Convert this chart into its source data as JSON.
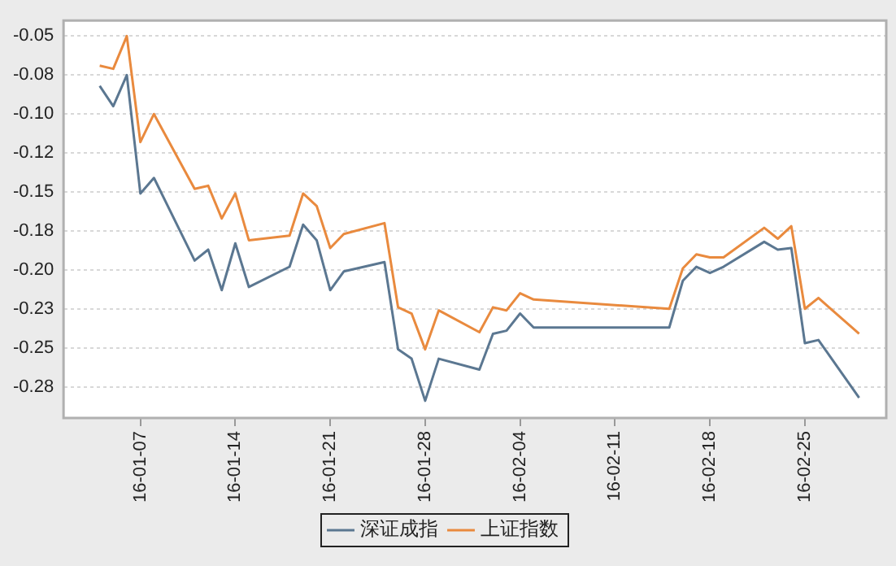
{
  "chart_data": {
    "type": "line",
    "x": [
      "--01-04",
      "--01-05",
      "--01-06",
      "--01-07",
      "--01-08",
      "--01-11",
      "--01-12",
      "--01-13",
      "--01-14",
      "--01-15",
      "--01-18",
      "--01-19",
      "--01-20",
      "--01-21",
      "--01-22",
      "--01-25",
      "--01-26",
      "--01-27",
      "--01-28",
      "--01-29",
      "--02-01",
      "--02-02",
      "--02-03",
      "--02-04",
      "--02-05",
      "--02-15",
      "--02-16",
      "--02-17",
      "--02-18",
      "--02-19",
      "--02-22",
      "--02-23",
      "--02-24",
      "--02-25",
      "--02-26",
      "--02-29"
    ],
    "series": [
      {
        "name": "深证成指",
        "color": "#5b7791",
        "values": [
          -0.082,
          -0.095,
          -0.075,
          -0.151,
          -0.141,
          -0.194,
          -0.187,
          -0.213,
          -0.183,
          -0.211,
          -0.198,
          -0.171,
          -0.181,
          -0.213,
          -0.201,
          -0.195,
          -0.251,
          -0.257,
          -0.284,
          -0.257,
          -0.264,
          -0.241,
          -0.239,
          -0.228,
          -0.237,
          -0.237,
          -0.207,
          -0.198,
          -0.202,
          -0.198,
          -0.182,
          -0.187,
          -0.186,
          -0.247,
          -0.245,
          -0.282
        ]
      },
      {
        "name": "上证指数",
        "color": "#e98a3e",
        "values": [
          -0.069,
          -0.071,
          -0.05,
          -0.118,
          -0.1,
          -0.148,
          -0.146,
          -0.167,
          -0.151,
          -0.181,
          -0.178,
          -0.151,
          -0.159,
          -0.186,
          -0.177,
          -0.17,
          -0.224,
          -0.228,
          -0.251,
          -0.226,
          -0.24,
          -0.224,
          -0.226,
          -0.215,
          -0.219,
          -0.225,
          -0.199,
          -0.19,
          -0.192,
          -0.192,
          -0.173,
          -0.18,
          -0.172,
          -0.225,
          -0.218,
          -0.241
        ]
      }
    ],
    "xlim": [
      "--01-01T08:00",
      "--03-02T00:00"
    ],
    "xticks": [
      {
        "value": "--01-07",
        "label": "16-01-07"
      },
      {
        "value": "--01-14",
        "label": "16-01-14"
      },
      {
        "value": "--01-21",
        "label": "16-01-21"
      },
      {
        "value": "--01-28",
        "label": "16-01-28"
      },
      {
        "value": "--02-04",
        "label": "16-02-04"
      },
      {
        "value": "--02-11",
        "label": "16-02-11"
      },
      {
        "value": "--02-18",
        "label": "16-02-18"
      },
      {
        "value": "--02-25",
        "label": "16-02-25"
      }
    ],
    "ylim": [
      -0.295,
      -0.04
    ],
    "yticks": [
      {
        "value": -0.05,
        "label": "-0.05"
      },
      {
        "value": -0.075,
        "label": "-0.08"
      },
      {
        "value": -0.1,
        "label": "-0.10"
      },
      {
        "value": -0.125,
        "label": "-0.12"
      },
      {
        "value": -0.15,
        "label": "-0.15"
      },
      {
        "value": -0.175,
        "label": "-0.18"
      },
      {
        "value": -0.2,
        "label": "-0.20"
      },
      {
        "value": -0.225,
        "label": "-0.23"
      },
      {
        "value": -0.25,
        "label": "-0.25"
      },
      {
        "value": -0.275,
        "label": "-0.28"
      }
    ],
    "grid": "y",
    "legend": "bottom",
    "marker": "none",
    "line_style": "solid"
  }
}
